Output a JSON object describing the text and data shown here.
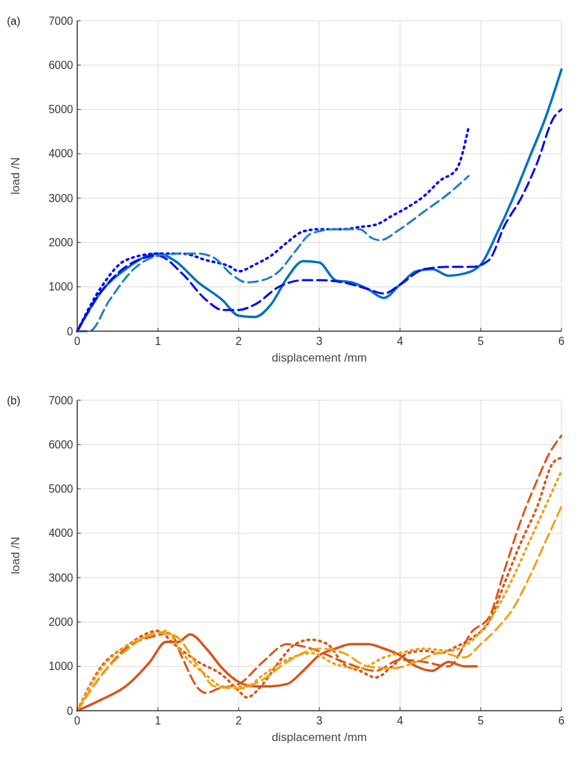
{
  "chart_data": [
    {
      "type": "line",
      "title": "(a)",
      "xlabel": "displacement /mm",
      "ylabel": "load /N",
      "xlim": [
        0,
        6
      ],
      "xticks": [
        0,
        1,
        2,
        3,
        4,
        5,
        6
      ],
      "ylim": [
        0,
        7000
      ],
      "yticks": [
        0,
        1000,
        2000,
        3000,
        4000,
        5000,
        6000,
        7000
      ],
      "grid": true,
      "series": [
        {
          "color": "#0072bd",
          "line_style": "solid",
          "x": [
            0,
            0.3,
            0.6,
            1,
            1.2,
            1.5,
            1.8,
            2,
            2.2,
            2.4,
            2.6,
            2.8,
            3,
            3.2,
            3.4,
            3.6,
            3.8,
            4,
            4.2,
            4.4,
            4.6,
            4.8,
            5,
            5.2,
            5.4,
            5.6,
            5.8,
            6
          ],
          "values": [
            0,
            900,
            1400,
            1750,
            1600,
            1100,
            700,
            350,
            320,
            600,
            1200,
            1580,
            1550,
            1150,
            1100,
            950,
            750,
            1050,
            1350,
            1400,
            1250,
            1300,
            1500,
            2200,
            3000,
            3900,
            4800,
            5900
          ]
        },
        {
          "color": "#0000ff",
          "line_style": "dashed",
          "x": [
            0,
            0.3,
            0.6,
            1,
            1.3,
            1.6,
            1.8,
            2,
            2.2,
            2.5,
            2.8,
            3,
            3.3,
            3.6,
            3.8,
            4,
            4.3,
            4.6,
            4.9,
            5.1,
            5.3,
            5.5,
            5.7,
            5.9,
            6
          ],
          "values": [
            0,
            900,
            1450,
            1700,
            1300,
            700,
            480,
            480,
            600,
            1000,
            1150,
            1150,
            1100,
            950,
            850,
            1050,
            1400,
            1450,
            1450,
            1600,
            2400,
            3000,
            3800,
            4800,
            5000
          ]
        },
        {
          "color": "#0000ff",
          "line_style": "dotted",
          "x": [
            0,
            0.3,
            0.6,
            1,
            1.3,
            1.6,
            1.9,
            2,
            2.2,
            2.4,
            2.6,
            2.8,
            3,
            3.3,
            3.5,
            3.7,
            3.9,
            4.1,
            4.3,
            4.5,
            4.7,
            4.85
          ],
          "values": [
            0,
            1000,
            1600,
            1750,
            1750,
            1600,
            1450,
            1350,
            1500,
            1700,
            2000,
            2250,
            2300,
            2300,
            2350,
            2400,
            2600,
            2800,
            3050,
            3400,
            3650,
            4600
          ]
        },
        {
          "color": "#1f7fbf",
          "line_style": "dashed",
          "x": [
            0,
            0.15,
            0.4,
            0.7,
            1,
            1.3,
            1.5,
            1.7,
            1.9,
            2.1,
            2.3,
            2.5,
            2.7,
            2.9,
            3.2,
            3.5,
            3.65,
            3.75,
            4,
            4.3,
            4.6,
            4.85
          ],
          "values": [
            0,
            0,
            700,
            1400,
            1700,
            1750,
            1750,
            1650,
            1300,
            1100,
            1150,
            1350,
            1800,
            2200,
            2300,
            2300,
            2100,
            2050,
            2300,
            2700,
            3100,
            3500
          ]
        }
      ]
    },
    {
      "type": "line",
      "title": "(b)",
      "xlabel": "displacement /mm",
      "ylabel": "load /N",
      "xlim": [
        0,
        6
      ],
      "xticks": [
        0,
        1,
        2,
        3,
        4,
        5,
        6
      ],
      "ylim": [
        0,
        7000
      ],
      "yticks": [
        0,
        1000,
        2000,
        3000,
        4000,
        5000,
        6000,
        7000
      ],
      "grid": true,
      "series": [
        {
          "color": "#d95319",
          "line_style": "solid",
          "x": [
            0,
            0.3,
            0.6,
            0.9,
            1.1,
            1.25,
            1.4,
            1.6,
            1.8,
            2,
            2.2,
            2.4,
            2.6,
            2.8,
            3,
            3.2,
            3.4,
            3.6,
            3.8,
            4,
            4.2,
            4.4,
            4.6,
            4.8,
            4.95
          ],
          "values": [
            0,
            250,
            550,
            1100,
            1550,
            1550,
            1720,
            1400,
            950,
            650,
            550,
            550,
            600,
            900,
            1250,
            1400,
            1500,
            1500,
            1400,
            1250,
            1000,
            900,
            1100,
            1000,
            1000
          ]
        },
        {
          "color": "#d95319",
          "line_style": "dashed",
          "x": [
            0,
            0.3,
            0.6,
            1,
            1.15,
            1.3,
            1.5,
            1.6,
            1.75,
            2,
            2.3,
            2.6,
            2.9,
            3.3,
            3.7,
            4,
            4.3,
            4.6,
            4.9,
            5.1,
            5.3,
            5.5,
            5.7,
            5.85,
            6
          ],
          "values": [
            0,
            800,
            1400,
            1700,
            1750,
            1200,
            500,
            400,
            500,
            600,
            1100,
            1500,
            1400,
            1100,
            900,
            1150,
            1100,
            1000,
            1800,
            2100,
            3200,
            4300,
            5200,
            5800,
            6200
          ]
        },
        {
          "color": "#d95319",
          "line_style": "dotted",
          "x": [
            0,
            0.3,
            0.6,
            1,
            1.2,
            1.5,
            1.8,
            2,
            2.1,
            2.3,
            2.5,
            2.7,
            2.9,
            3.1,
            3.3,
            3.5,
            3.7,
            3.9,
            4.1,
            4.3,
            4.5,
            4.7,
            4.9,
            5.1,
            5.3,
            5.5,
            5.7,
            5.9,
            6
          ],
          "values": [
            0,
            1000,
            1450,
            1800,
            1500,
            1100,
            800,
            450,
            300,
            600,
            1100,
            1500,
            1600,
            1500,
            1050,
            900,
            750,
            1000,
            1300,
            1350,
            1300,
            1450,
            1650,
            2000,
            2900,
            3800,
            4600,
            5600,
            5700
          ]
        },
        {
          "color": "#f0a010",
          "line_style": "dotted",
          "x": [
            0,
            0.3,
            0.6,
            1,
            1.1,
            1.3,
            1.6,
            1.8,
            2.1,
            2.3,
            2.6,
            2.9,
            3.2,
            3.5,
            3.8,
            4,
            4.3,
            4.6,
            4.9,
            5.2,
            5.4,
            5.6,
            5.8,
            6
          ],
          "values": [
            0,
            950,
            1450,
            1750,
            1800,
            1300,
            800,
            550,
            550,
            800,
            1150,
            1300,
            1050,
            950,
            1200,
            1300,
            1400,
            1350,
            1600,
            2300,
            3000,
            3800,
            4600,
            5400
          ]
        },
        {
          "color": "#f0a010",
          "line_style": "dashed",
          "x": [
            0,
            0.3,
            0.6,
            1,
            1.2,
            1.5,
            1.7,
            2,
            2.3,
            2.6,
            3,
            3.3,
            3.6,
            3.9,
            4.2,
            4.5,
            4.8,
            5,
            5.2,
            5.4,
            5.6,
            5.8,
            6
          ],
          "values": [
            0,
            800,
            1350,
            1750,
            1700,
            1000,
            550,
            500,
            700,
            1100,
            1400,
            1300,
            1000,
            950,
            1100,
            1300,
            1200,
            1500,
            1850,
            2300,
            3000,
            3800,
            4600
          ]
        }
      ]
    }
  ]
}
